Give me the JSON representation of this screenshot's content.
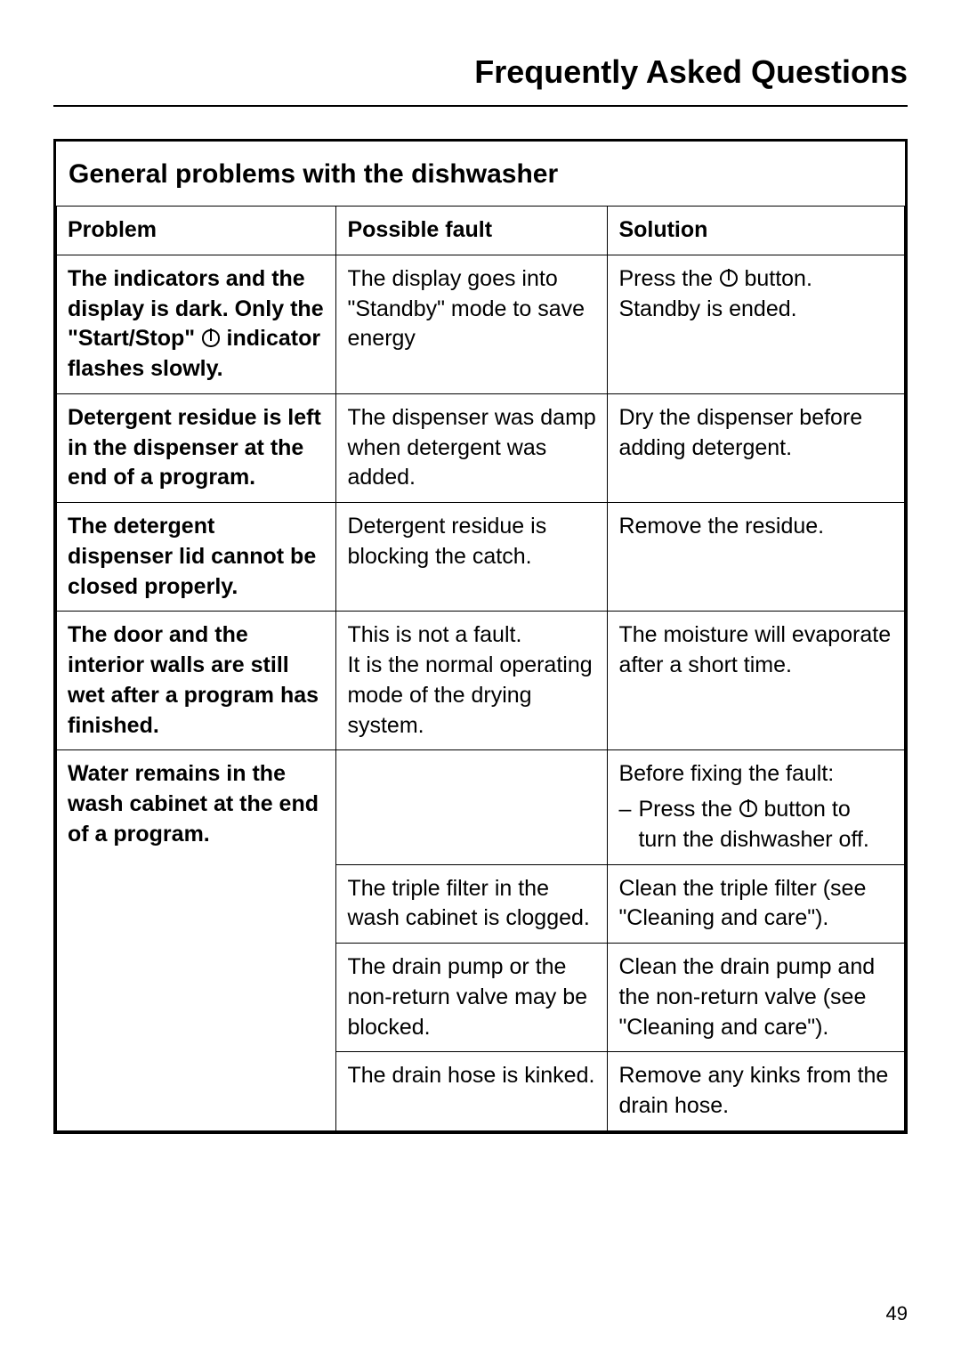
{
  "page": {
    "title": "Frequently Asked Questions",
    "section_heading": "General problems with the dishwasher",
    "page_number": "49",
    "columns": {
      "problem": "Problem",
      "fault": "Possible fault",
      "solution": "Solution"
    },
    "rows": [
      {
        "problem_pre": "The indicators and the display is dark. Only the \"Start/Stop\" ",
        "problem_has_power_icon": true,
        "problem_post": " indicator flashes slowly.",
        "fault": "The display goes into \"Standby\" mode to save energy",
        "solution_pre": "Press the ",
        "solution_has_power_icon": true,
        "solution_post": " button. Standby is ended."
      },
      {
        "problem": "Detergent residue is left in the dispenser at the end of a program.",
        "fault": "The dispenser was damp when detergent was added.",
        "solution": "Dry the dispenser before adding detergent."
      },
      {
        "problem": "The detergent dispenser lid cannot be closed properly.",
        "fault": "Detergent residue is blocking the catch.",
        "solution": "Remove the residue."
      },
      {
        "problem": "The door and the interior walls are still wet after a program has finished.",
        "fault": "This is not a fault.\nIt is the normal operating mode of the drying system.",
        "solution": "The moisture will evaporate after a short time."
      },
      {
        "problem": "Water remains in the wash cabinet at the end of a program.",
        "fault": "",
        "solution_intro": "Before fixing the fault:",
        "solution_list_pre": "Press the ",
        "solution_list_has_power_icon": true,
        "solution_list_post": " button to turn the dishwasher off."
      },
      {
        "fault": "The triple filter in the wash cabinet is clogged.",
        "solution": "Clean the triple filter (see \"Cleaning and care\")."
      },
      {
        "fault": "The drain pump or the non-return valve may be blocked.",
        "solution": "Clean the drain pump and the non-return valve (see \"Cleaning and care\")."
      },
      {
        "fault": "The drain hose is kinked.",
        "solution": "Remove any kinks from the drain hose."
      }
    ]
  }
}
